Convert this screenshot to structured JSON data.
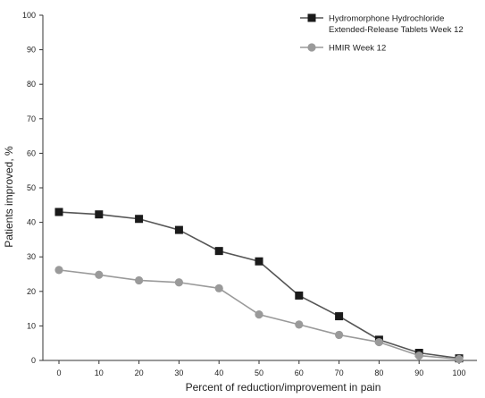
{
  "chart_data": {
    "type": "line",
    "title": "",
    "xlabel": "Percent of reduction/improvement in pain",
    "ylabel": "Patients improved, %",
    "x": [
      0,
      10,
      20,
      30,
      40,
      50,
      60,
      70,
      80,
      90,
      100
    ],
    "xlim": [
      0,
      100
    ],
    "ylim": [
      0,
      100
    ],
    "xticks": [
      "0",
      "10",
      "20",
      "30",
      "40",
      "50",
      "60",
      "70",
      "80",
      "90",
      "100"
    ],
    "yticks": [
      "0",
      "10",
      "20",
      "30",
      "40",
      "50",
      "60",
      "70",
      "80",
      "90",
      "100"
    ],
    "grid": false,
    "legend_position": "top-right",
    "series": [
      {
        "name": "Hydromorphone Hydrochloride Extended-Release Tablets Week 12",
        "legend_lines": [
          "Hydromorphone Hydrochloride",
          "Extended-Release Tablets Week 12"
        ],
        "marker": "square",
        "color": "#1a1a1a",
        "line_color": "#555555",
        "values": [
          43,
          42.3,
          41,
          37.8,
          31.7,
          28.7,
          18.8,
          12.8,
          6,
          2.2,
          0.6
        ]
      },
      {
        "name": "HMIR Week 12",
        "legend_lines": [
          "HMIR Week 12"
        ],
        "marker": "circle",
        "color": "#9a9a9a",
        "line_color": "#9a9a9a",
        "values": [
          26.2,
          24.8,
          23.2,
          22.6,
          20.9,
          13.3,
          10.4,
          7.4,
          5.3,
          1.4,
          0.4
        ]
      }
    ]
  }
}
